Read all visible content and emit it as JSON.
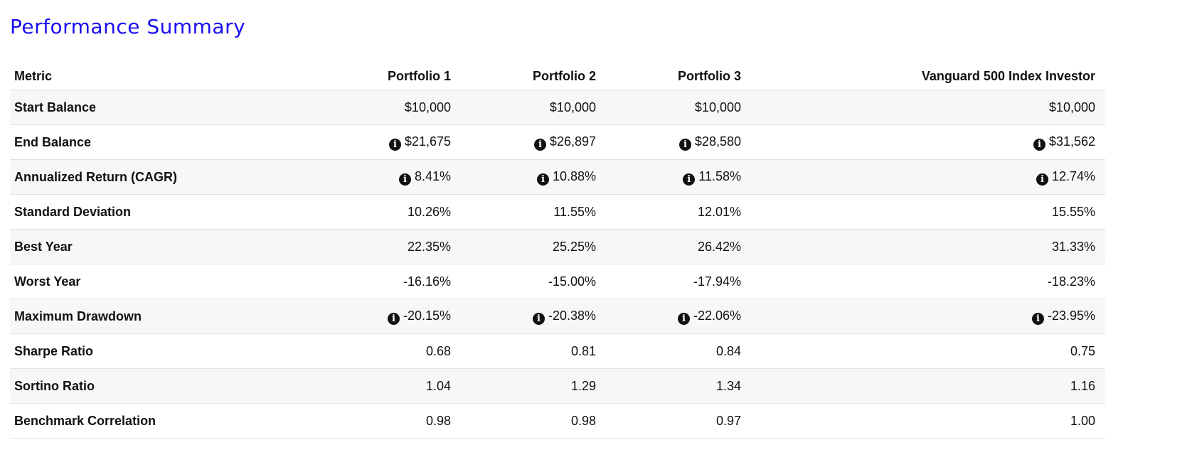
{
  "title": "Performance Summary",
  "header": {
    "metric": "Metric",
    "portfolio1": "Portfolio 1",
    "portfolio2": "Portfolio 2",
    "portfolio3": "Portfolio 3",
    "benchmark": "Vanguard 500 Index Investor"
  },
  "info_icon": "info-circle-icon",
  "rows": [
    {
      "metric": "Start Balance",
      "info": false,
      "p1": "$10,000",
      "p2": "$10,000",
      "p3": "$10,000",
      "bench": "$10,000"
    },
    {
      "metric": "End Balance",
      "info": true,
      "p1": "$21,675",
      "p2": "$26,897",
      "p3": "$28,580",
      "bench": "$31,562"
    },
    {
      "metric": "Annualized Return (CAGR)",
      "info": true,
      "p1": "8.41%",
      "p2": "10.88%",
      "p3": "11.58%",
      "bench": "12.74%"
    },
    {
      "metric": "Standard Deviation",
      "info": false,
      "p1": "10.26%",
      "p2": "11.55%",
      "p3": "12.01%",
      "bench": "15.55%"
    },
    {
      "metric": "Best Year",
      "info": false,
      "p1": "22.35%",
      "p2": "25.25%",
      "p3": "26.42%",
      "bench": "31.33%"
    },
    {
      "metric": "Worst Year",
      "info": false,
      "p1": "-16.16%",
      "p2": "-15.00%",
      "p3": "-17.94%",
      "bench": "-18.23%"
    },
    {
      "metric": "Maximum Drawdown",
      "info": true,
      "p1": "-20.15%",
      "p2": "-20.38%",
      "p3": "-22.06%",
      "bench": "-23.95%"
    },
    {
      "metric": "Sharpe Ratio",
      "info": false,
      "p1": "0.68",
      "p2": "0.81",
      "p3": "0.84",
      "bench": "0.75"
    },
    {
      "metric": "Sortino Ratio",
      "info": false,
      "p1": "1.04",
      "p2": "1.29",
      "p3": "1.34",
      "bench": "1.16"
    },
    {
      "metric": "Benchmark Correlation",
      "info": false,
      "p1": "0.98",
      "p2": "0.98",
      "p3": "0.97",
      "bench": "1.00"
    }
  ],
  "colors": {
    "title": "#1a0ff0",
    "stripe": "#f7f7f7",
    "border": "#e3e3e3"
  }
}
